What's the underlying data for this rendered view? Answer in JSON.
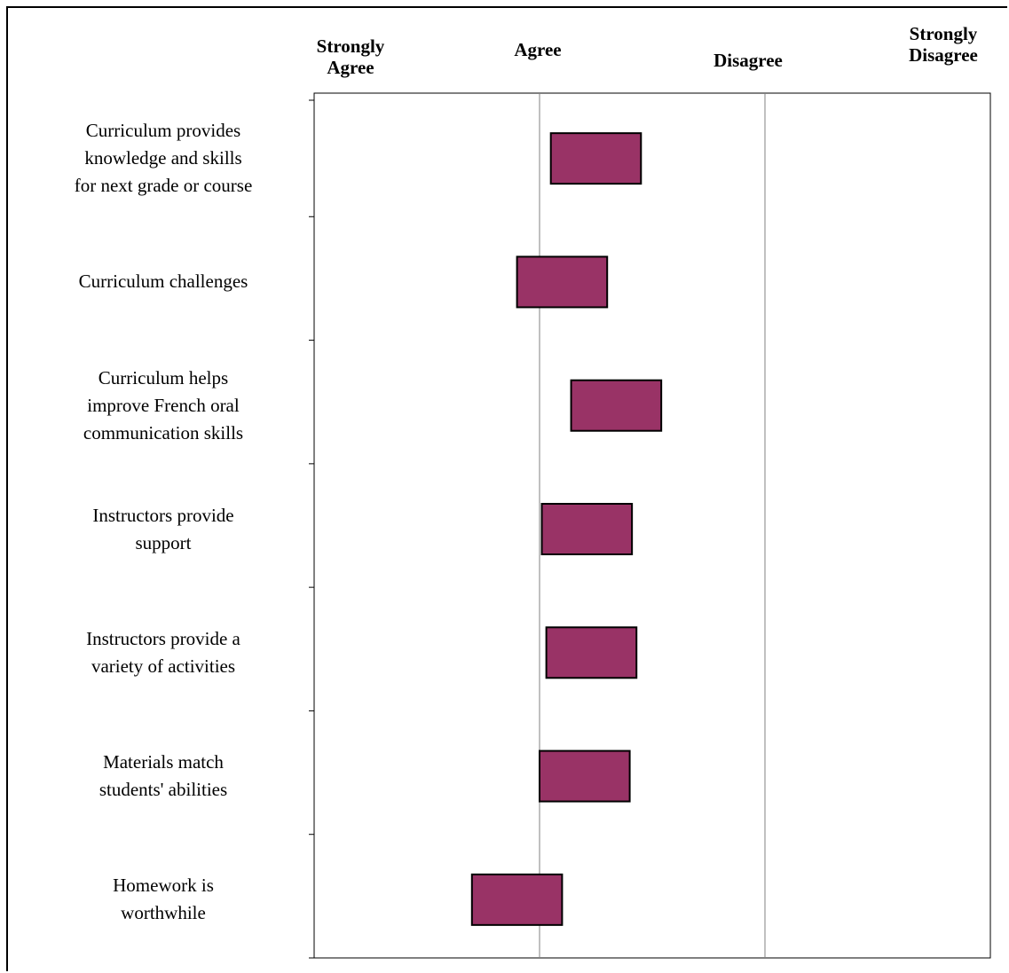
{
  "chart_data": {
    "type": "bar",
    "orientation": "horizontal-range",
    "scale_labels": [
      "Strongly\nAgree",
      "Agree",
      "Disagree",
      "Strongly\nDisagree"
    ],
    "categories": [
      "Curriculum provides\nknowledge and skills\nfor next grade or course",
      "Curriculum challenges",
      "Curriculum helps\nimprove French oral\ncommunication skills",
      "Instructors provide\nsupport",
      "Instructors provide a\nvariety of activities",
      "Materials match\nstudents' abilities",
      "Homework is\nworthwhile"
    ],
    "ranges": [
      [
        2.05,
        2.45
      ],
      [
        1.9,
        2.3
      ],
      [
        2.14,
        2.54
      ],
      [
        2.01,
        2.41
      ],
      [
        2.03,
        2.43
      ],
      [
        2.0,
        2.4
      ],
      [
        1.7,
        2.1
      ]
    ],
    "xlim": [
      1,
      4
    ],
    "bar_color": "#993366",
    "grid": true
  }
}
